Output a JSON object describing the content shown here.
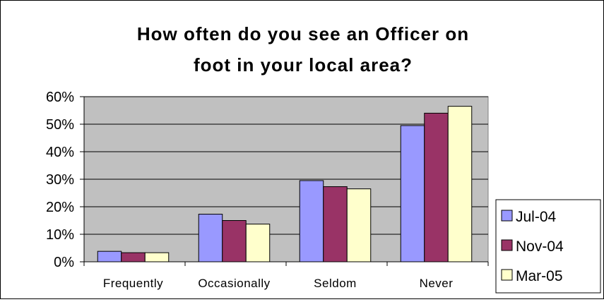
{
  "chart_data": {
    "type": "bar",
    "title_lines": [
      "How often do you see an Officer on",
      "foot in your local area?"
    ],
    "categories": [
      "Frequently",
      "Occasionally",
      "Seldom",
      "Never"
    ],
    "series": [
      {
        "name": "Jul-04",
        "values": [
          3.8,
          17.3,
          29.5,
          49.5
        ],
        "color": "#9999ff"
      },
      {
        "name": "Nov-04",
        "values": [
          3.3,
          15.0,
          27.3,
          54.0
        ],
        "color": "#993366"
      },
      {
        "name": "Mar-05",
        "values": [
          3.3,
          13.7,
          26.5,
          56.5
        ],
        "color": "#ffffcc"
      }
    ],
    "ylim": [
      0,
      60
    ],
    "yticks": [
      0,
      10,
      20,
      30,
      40,
      50,
      60
    ],
    "ytick_labels": [
      "0%",
      "10%",
      "20%",
      "30%",
      "40%",
      "50%",
      "60%"
    ],
    "grid": true,
    "plot_background": "#c0c0c0",
    "legend_position": "right"
  }
}
